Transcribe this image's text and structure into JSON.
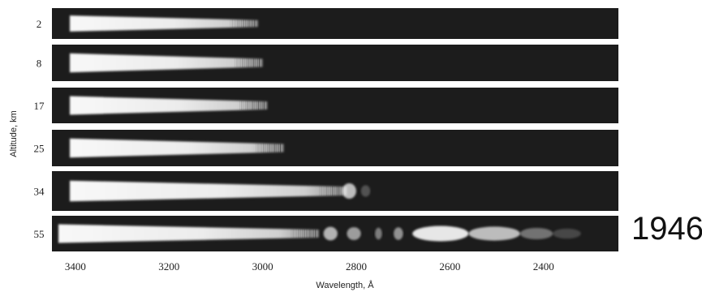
{
  "chart_data": {
    "type": "spectrogram",
    "xlabel": "Wavelength, Å",
    "ylabel": "Altitude, km",
    "x_ticks": [
      3400,
      3200,
      3000,
      2800,
      2600,
      2400
    ],
    "x_range": [
      3450,
      2240
    ],
    "strips": [
      {
        "altitude": 2,
        "cutoff": 3010
      },
      {
        "altitude": 8,
        "cutoff": 3000
      },
      {
        "altitude": 17,
        "cutoff": 2990
      },
      {
        "altitude": 25,
        "cutoff": 2955
      },
      {
        "altitude": 34,
        "cutoff": 2820,
        "patches": [
          [
            2830,
            2800,
            0.75
          ],
          [
            2790,
            2770,
            0.25
          ]
        ]
      },
      {
        "altitude": 55,
        "cutoff": 2880,
        "patches": [
          [
            2870,
            2840,
            0.7
          ],
          [
            2820,
            2790,
            0.6
          ],
          [
            2760,
            2745,
            0.45
          ],
          [
            2720,
            2700,
            0.55
          ],
          [
            2680,
            2560,
            0.95
          ],
          [
            2560,
            2450,
            0.75
          ],
          [
            2450,
            2380,
            0.4
          ],
          [
            2380,
            2320,
            0.2
          ]
        ]
      }
    ]
  },
  "year": "1946"
}
